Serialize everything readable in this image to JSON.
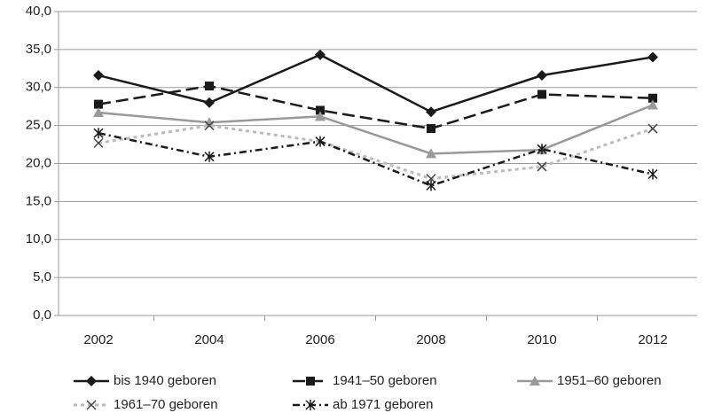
{
  "chart_data": {
    "type": "line",
    "categories": [
      "2002",
      "2004",
      "2006",
      "2008",
      "2010",
      "2012"
    ],
    "ylim": [
      0,
      40
    ],
    "yticks": [
      {
        "value": 0,
        "label": "0,0"
      },
      {
        "value": 5,
        "label": "5,0"
      },
      {
        "value": 10,
        "label": "10,0"
      },
      {
        "value": 15,
        "label": "15,0"
      },
      {
        "value": 20,
        "label": "20,0"
      },
      {
        "value": 25,
        "label": "25,0"
      },
      {
        "value": 30,
        "label": "30,0"
      },
      {
        "value": 35,
        "label": "35,0"
      },
      {
        "value": 40,
        "label": "40,0"
      }
    ],
    "grid": true,
    "series": [
      {
        "name": "bis 1940 geboren",
        "color": "#1a1a1a",
        "values": [
          31.6,
          28.0,
          34.3,
          26.8,
          31.6,
          34.0
        ]
      },
      {
        "name": "1941–50 geboren",
        "color": "#1a1a1a",
        "values": [
          27.8,
          30.2,
          27.0,
          24.6,
          29.1,
          28.6
        ]
      },
      {
        "name": "1951–60 geboren",
        "color": "#999999",
        "values": [
          26.7,
          25.4,
          26.2,
          21.3,
          21.8,
          27.7
        ]
      },
      {
        "name": "1961–70 geboren",
        "color": "#bbbbbb",
        "values": [
          22.7,
          25.0,
          22.9,
          18.0,
          19.6,
          24.6
        ]
      },
      {
        "name": "ab 1971 geboren",
        "color": "#1a1a1a",
        "values": [
          24.0,
          20.9,
          22.9,
          17.1,
          21.9,
          18.6
        ]
      }
    ]
  }
}
